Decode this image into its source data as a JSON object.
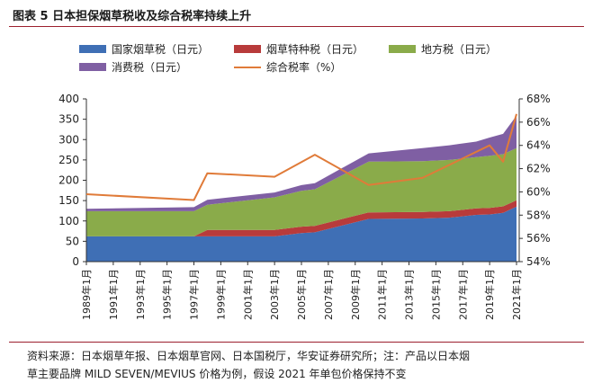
{
  "figure": {
    "title": "图表 5 日本担保烟草税收及综合税率持续上升",
    "source_line1": "资料来源：日本烟草年报、日本烟草官网、日本国税厅，华安证券研究所；注：产品以日本烟",
    "source_line2": "草主要品牌 MILD SEVEN/MEVIUS 价格为例，假设 2021 年单包价格保持不变"
  },
  "legend": {
    "national": "国家烟草税（日元）",
    "special": "烟草特种税（日元）",
    "local": "地方税（日元）",
    "consumption": "消费税（日元）",
    "rate": "综合税率（%）"
  },
  "colors": {
    "national": "#3f6fb5",
    "special": "#b83b3b",
    "local": "#8aab4a",
    "consumption": "#7f5fa3",
    "rate": "#e07b39"
  },
  "chart_data": {
    "type": "area",
    "x": [
      1989,
      1997,
      1998,
      2003,
      2005,
      2006,
      2010,
      2014,
      2016,
      2018,
      2019,
      2020,
      2021
    ],
    "x_tick_labels": [
      "1989年1月",
      "1991年1月",
      "1993年1月",
      "1995年1月",
      "1997年1月",
      "1999年1月",
      "2001年1月",
      "2003年1月",
      "2005年1月",
      "2007年1月",
      "2009年1月",
      "2011年1月",
      "2013年1月",
      "2015年1月",
      "2017年1月",
      "2019年1月",
      "2021年1月"
    ],
    "y_left": {
      "ylim": [
        0,
        400
      ],
      "ticks": [
        "0",
        "50",
        "100",
        "150",
        "200",
        "250",
        "300",
        "350",
        "400"
      ]
    },
    "y_right": {
      "ylim": [
        54,
        68
      ],
      "ticks": [
        "54%",
        "56%",
        "58%",
        "60%",
        "62%",
        "64%",
        "66%",
        "68%"
      ]
    },
    "stack_series": [
      {
        "name": "国家烟草税（日元）",
        "key": "national",
        "values": [
          62,
          62,
          62,
          62,
          70,
          72,
          105,
          106,
          108,
          115,
          116,
          120,
          135
        ]
      },
      {
        "name": "烟草特种税（日元）",
        "key": "special",
        "values": [
          0,
          0,
          16,
          16,
          16,
          16,
          16,
          16,
          16,
          16,
          16,
          16,
          16
        ]
      },
      {
        "name": "地方税（日元）",
        "key": "local",
        "values": [
          62,
          62,
          62,
          80,
          88,
          90,
          125,
          125,
          126,
          126,
          128,
          128,
          128
        ]
      },
      {
        "name": "消费税（日元）",
        "key": "consumption",
        "values": [
          6,
          10,
          12,
          12,
          14,
          15,
          20,
          32,
          36,
          38,
          45,
          50,
          80
        ]
      }
    ],
    "rate_series": {
      "name": "综合税率（%）",
      "x": [
        1989,
        1997,
        1998,
        2003,
        2006,
        2010,
        2014,
        2019,
        2020,
        2021
      ],
      "values": [
        59.8,
        59.3,
        61.6,
        61.3,
        63.2,
        60.6,
        61.2,
        64.0,
        62.6,
        66.7
      ]
    }
  }
}
